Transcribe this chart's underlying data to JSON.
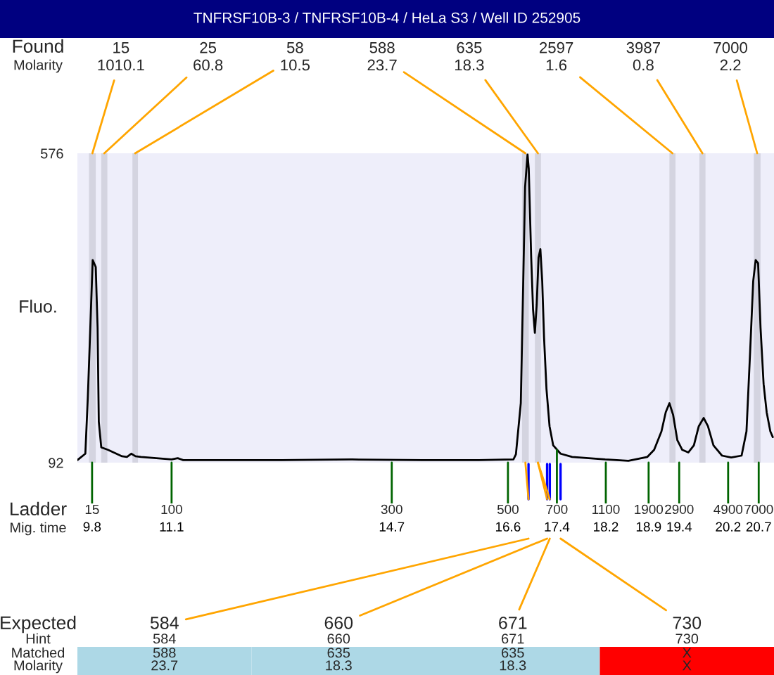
{
  "chart_data": {
    "type": "line",
    "title": "TNFRSF10B-3 / TNFRSF10B-4 / HeLa S3 / Well ID 252905",
    "ylabel": "Fluo.",
    "xlabel": "Mig. time",
    "color": "#000000",
    "x": [
      9.56,
      9.69,
      9.73,
      9.77,
      9.81,
      9.86,
      9.89,
      9.91,
      9.95,
      10.06,
      10.29,
      10.37,
      10.44,
      10.51,
      10.6,
      11.1,
      11.2,
      11.29,
      11.75,
      12.9,
      14.05,
      15.2,
      16.12,
      16.69,
      16.73,
      16.81,
      16.85,
      16.88,
      16.92,
      16.94,
      16.98,
      17.01,
      17.04,
      17.07,
      17.1,
      17.13,
      17.16,
      17.19,
      17.23,
      17.28,
      17.34,
      17.46,
      17.65,
      18.19,
      18.57,
      18.88,
      18.99,
      19.11,
      19.18,
      19.24,
      19.3,
      19.37,
      19.45,
      19.55,
      19.64,
      19.72,
      19.8,
      19.87,
      19.96,
      20.1,
      20.25,
      20.42,
      20.5,
      20.56,
      20.61,
      20.65,
      20.69,
      20.73,
      20.78,
      20.83,
      20.89,
      20.93
    ],
    "values": [
      96,
      106,
      193,
      300,
      409,
      398,
      303,
      156,
      116,
      112,
      102,
      101,
      106,
      102,
      101,
      97,
      99,
      96,
      96,
      96,
      97,
      96,
      96,
      97,
      105,
      185,
      376,
      523,
      574,
      552,
      413,
      332,
      295,
      339,
      413,
      426,
      376,
      288,
      207,
      149,
      119,
      106,
      101,
      97,
      95,
      101,
      112,
      141,
      171,
      185,
      167,
      127,
      112,
      108,
      119,
      149,
      162,
      149,
      119,
      103,
      100,
      103,
      141,
      266,
      376,
      409,
      404,
      303,
      215,
      171,
      141,
      132
    ],
    "xlim": [
      9.56,
      20.95
    ],
    "ylim": [
      92,
      576
    ],
    "yticks": [
      92,
      576
    ],
    "xticks": [
      9.8,
      11.1,
      14.7,
      16.6,
      17.4,
      18.2,
      18.9,
      19.4,
      20.2,
      20.7
    ],
    "bands": [
      {
        "axis": "x",
        "from": 9.75,
        "to": 9.86,
        "label": "15\n1010.1",
        "color": "#d4d4e0"
      },
      {
        "axis": "x",
        "from": 9.95,
        "to": 10.05,
        "label": "25\n60.8",
        "color": "#d4d4e0"
      },
      {
        "axis": "x",
        "from": 10.46,
        "to": 10.55,
        "label": "58\n10.5",
        "color": "#d4d4e0"
      },
      {
        "axis": "x",
        "from": 16.83,
        "to": 16.94,
        "label": "588\n23.7",
        "color": "#d4d4e0"
      },
      {
        "axis": "x",
        "from": 17.04,
        "to": 17.14,
        "label": "635\n18.3",
        "color": "#d4d4e0"
      },
      {
        "axis": "x",
        "from": 19.24,
        "to": 19.34,
        "label": "2597\n1.6",
        "color": "#d4d4e0"
      },
      {
        "axis": "x",
        "from": 19.73,
        "to": 19.83,
        "label": "3987\n0.8",
        "color": "#d4d4e0"
      },
      {
        "axis": "x",
        "from": 20.62,
        "to": 20.73,
        "label": "7000\n2.2",
        "color": "#d4d4e0"
      }
    ],
    "annotations": [
      {
        "text": "15",
        "x": 9.8,
        "y": 92
      },
      {
        "text": "100",
        "x": 11.1,
        "y": 92
      },
      {
        "text": "300",
        "x": 14.7,
        "y": 92
      },
      {
        "text": "500",
        "x": 16.6,
        "y": 92
      },
      {
        "text": "700",
        "x": 17.4,
        "y": 112
      },
      {
        "text": "1100",
        "x": 18.2,
        "y": 92
      },
      {
        "text": "1900",
        "x": 18.9,
        "y": 92
      },
      {
        "text": "2900",
        "x": 19.4,
        "y": 92
      },
      {
        "text": "4900",
        "x": 20.2,
        "y": 92
      },
      {
        "text": "7000",
        "x": 20.7,
        "y": 92
      },
      "Found",
      "Molarity",
      "Ladder",
      "Expected",
      "Hint",
      "Matched",
      "Molarity",
      "584",
      "660",
      "671",
      "730",
      "584",
      "660",
      "671",
      "730",
      "588",
      "635",
      "635",
      "X",
      "23.7",
      "18.3",
      "18.3",
      "X"
    ]
  }
}
